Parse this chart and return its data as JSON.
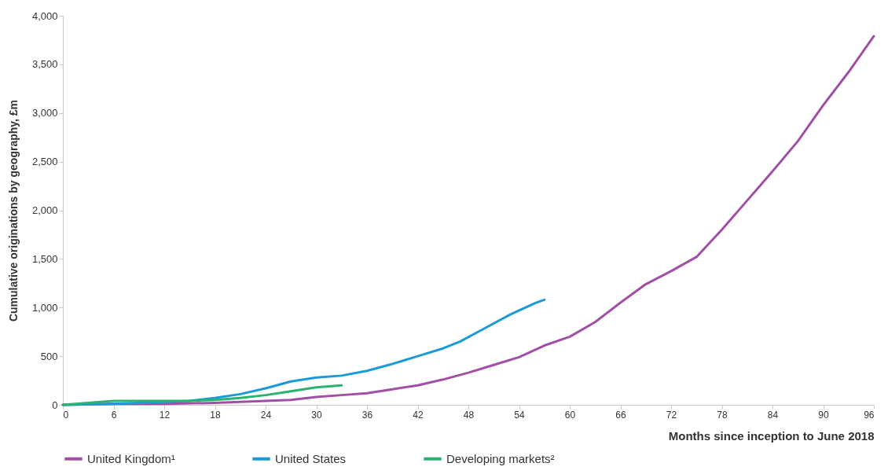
{
  "chart_data": {
    "type": "line",
    "xlabel": "Months since inception to June 2018",
    "ylabel": "Cumulative originations by geography, £m",
    "xlim": [
      0,
      96
    ],
    "xticks": [
      0,
      6,
      12,
      18,
      24,
      30,
      36,
      42,
      48,
      54,
      60,
      66,
      72,
      78,
      84,
      90,
      96
    ],
    "ylim": [
      0,
      4000
    ],
    "yticks": [
      0,
      500,
      {
        "value": 1000,
        "label": "1,000"
      },
      {
        "value": 1500,
        "label": "1,500"
      },
      {
        "value": 2000,
        "label": "2,000"
      },
      {
        "value": 2500,
        "label": "2,500"
      },
      {
        "value": 3000,
        "label": "3,000"
      },
      {
        "value": 3500,
        "label": "3,500"
      },
      {
        "value": 4000,
        "label": "4,000"
      }
    ],
    "grid": false,
    "legend": "bottom",
    "marker": "none",
    "line_style": "solid",
    "series": [
      {
        "name": "United Kingdom¹",
        "color": "#a04fa5",
        "x": [
          0,
          6,
          12,
          18,
          24,
          27,
          30,
          33,
          36,
          39,
          42,
          45,
          48,
          51,
          54,
          57,
          60,
          63,
          66,
          69,
          72,
          75,
          78,
          81,
          84,
          87,
          90,
          93,
          96
        ],
        "values": [
          0,
          10,
          10,
          20,
          40,
          50,
          80,
          100,
          120,
          160,
          200,
          260,
          330,
          410,
          490,
          610,
          700,
          850,
          1050,
          1240,
          1375,
          1520,
          1800,
          2100,
          2400,
          2710,
          3080,
          3420,
          3790
        ]
      },
      {
        "name": "United States",
        "color": "#1a9ad6",
        "x": [
          0,
          6,
          12,
          15,
          18,
          21,
          24,
          27,
          30,
          33,
          36,
          39,
          42,
          45,
          47,
          50,
          53,
          56,
          57
        ],
        "values": [
          0,
          10,
          30,
          40,
          70,
          110,
          170,
          240,
          280,
          300,
          350,
          420,
          500,
          580,
          650,
          790,
          930,
          1050,
          1080
        ]
      },
      {
        "name": "Developing markets²",
        "color": "#29b36e",
        "x": [
          0,
          3,
          6,
          9,
          12,
          15,
          18,
          21,
          24,
          27,
          30,
          33
        ],
        "values": [
          0,
          20,
          40,
          40,
          40,
          40,
          50,
          70,
          100,
          140,
          180,
          200
        ]
      }
    ]
  }
}
